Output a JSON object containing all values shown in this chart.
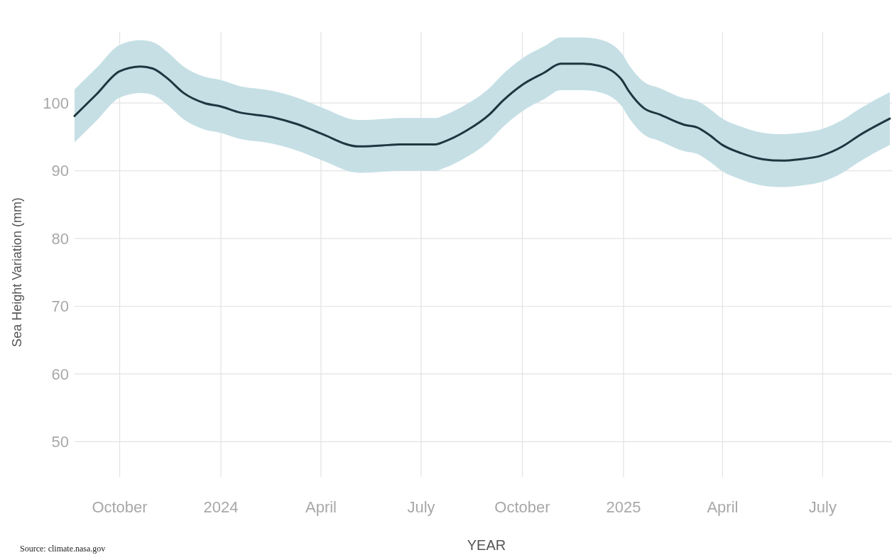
{
  "chart_data": {
    "type": "line",
    "xlabel": "YEAR",
    "ylabel": "Sea Height Variation (mm)",
    "annotations": [
      "Source: climate.nasa.gov"
    ],
    "x": [
      "2023-08-21",
      "2023-09-10",
      "2023-10-01",
      "2023-10-20",
      "2023-10-31",
      "2023-11-13",
      "2023-11-28",
      "2023-12-17",
      "2024-01-01",
      "2024-01-16",
      "2024-02-17",
      "2024-03-10",
      "2024-04-01",
      "2024-05-05",
      "2024-06-01",
      "2024-06-11",
      "2024-07-14",
      "2024-07-22",
      "2024-08-11",
      "2024-09-01",
      "2024-09-13",
      "2024-10-01",
      "2024-10-21",
      "2024-11-05",
      "2024-11-25",
      "2024-12-10",
      "2024-12-30",
      "2025-01-06",
      "2025-01-19",
      "2025-02-03",
      "2025-02-25",
      "2025-03-09",
      "2025-03-19",
      "2025-04-01",
      "2025-04-18",
      "2025-05-08",
      "2025-05-25",
      "2025-06-10",
      "2025-06-29",
      "2025-07-19",
      "2025-08-03",
      "2025-08-31"
    ],
    "series": [
      {
        "color": "#1f3640",
        "values": [
          98.1,
          101.3,
          104.7,
          105.4,
          105.1,
          103.7,
          101.5,
          100.0,
          99.5,
          98.7,
          97.9,
          96.9,
          95.5,
          93.6,
          93.8,
          93.9,
          93.9,
          94.3,
          95.9,
          98.3,
          100.3,
          102.7,
          104.5,
          105.8,
          105.8,
          105.5,
          103.5,
          101.7,
          99.3,
          98.3,
          96.8,
          96.4,
          95.4,
          93.8,
          92.6,
          91.7,
          91.5,
          91.7,
          92.2,
          93.6,
          95.2,
          97.7
        ],
        "upper": [
          102.0,
          105.2,
          108.6,
          109.3,
          109.0,
          107.6,
          105.4,
          103.9,
          103.4,
          102.6,
          101.8,
          100.8,
          99.4,
          97.5,
          97.7,
          97.8,
          97.8,
          98.2,
          99.8,
          102.2,
          104.2,
          106.6,
          108.4,
          109.7,
          109.7,
          109.4,
          107.4,
          105.6,
          103.2,
          102.2,
          100.7,
          100.3,
          99.3,
          97.7,
          96.5,
          95.6,
          95.4,
          95.6,
          96.1,
          97.5,
          99.1,
          101.6
        ],
        "lower": [
          94.2,
          97.4,
          100.8,
          101.5,
          101.2,
          99.8,
          97.6,
          96.1,
          95.6,
          94.8,
          94.0,
          93.0,
          91.6,
          89.7,
          89.9,
          90.0,
          90.0,
          90.4,
          92.0,
          94.4,
          96.4,
          98.8,
          100.6,
          101.9,
          101.9,
          101.6,
          99.6,
          97.8,
          95.4,
          94.4,
          92.9,
          92.5,
          91.5,
          89.9,
          88.7,
          87.8,
          87.6,
          87.8,
          88.3,
          89.7,
          91.3,
          93.8
        ]
      }
    ],
    "xlim": [
      "2023-08-21",
      "2025-09-02"
    ],
    "xticks": [
      {
        "value": "2023-10-01",
        "label": "October"
      },
      {
        "value": "2024-01-01",
        "label": "2024"
      },
      {
        "value": "2024-04-01",
        "label": "April"
      },
      {
        "value": "2024-07-01",
        "label": "July"
      },
      {
        "value": "2024-10-01",
        "label": "October"
      },
      {
        "value": "2025-01-01",
        "label": "2025"
      },
      {
        "value": "2025-04-01",
        "label": "April"
      },
      {
        "value": "2025-07-01",
        "label": "July"
      }
    ],
    "ylim": [
      44.8,
      110.5
    ],
    "yticks": [
      50,
      60,
      70,
      80,
      90,
      100
    ],
    "grid": true,
    "line_style": "solid",
    "marker": "none"
  }
}
